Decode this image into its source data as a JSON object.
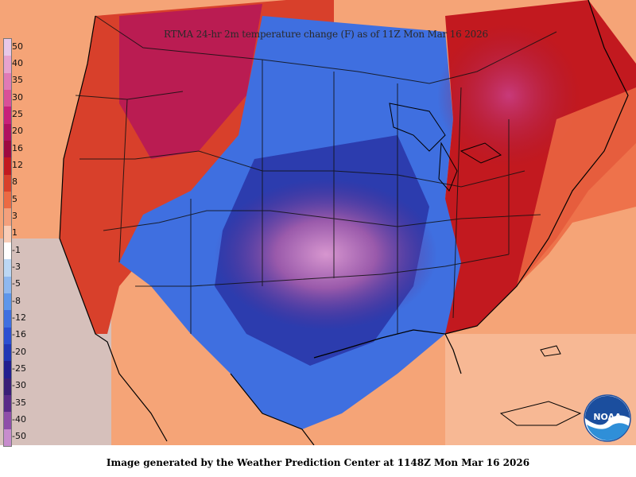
{
  "title": "RTMA 24-hr 2m temperature change (F) as of 11Z Mon Mar 16 2026",
  "footer": "Image generated by the Weather Prediction Center at 1148Z Mon Mar 16 2026",
  "logo_text": "NOAA",
  "legend": {
    "labels": [
      "50",
      "40",
      "35",
      "30",
      "25",
      "20",
      "16",
      "12",
      "8",
      "5",
      "3",
      "1",
      "-1",
      "-3",
      "-5",
      "-8",
      "-12",
      "-16",
      "-20",
      "-25",
      "-30",
      "-35",
      "-40",
      "-50"
    ],
    "colors": [
      "#e8c8e8",
      "#e7a3cf",
      "#e07ab6",
      "#d94f98",
      "#c8207a",
      "#b01060",
      "#9e0a40",
      "#c2191f",
      "#d8402b",
      "#ec6a43",
      "#f4a07c",
      "#f9cdb7",
      "#ffffff",
      "#bcd7f4",
      "#8fb8ef",
      "#5e96ea",
      "#3f6fe0",
      "#2c4fd1",
      "#2237b5",
      "#231f8f",
      "#3a1f77",
      "#5a2b88",
      "#8f4fa9",
      "#c78ccd"
    ]
  }
}
